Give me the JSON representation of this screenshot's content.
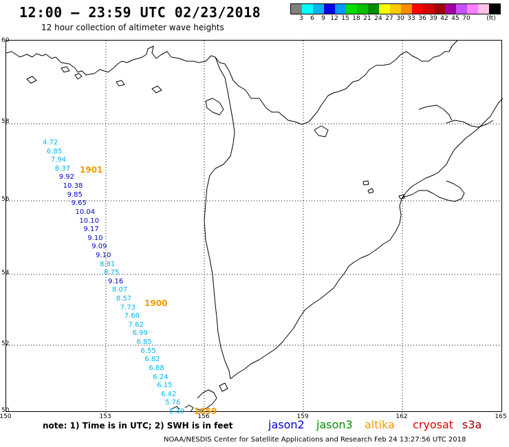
{
  "header": {
    "title": "12:00 — 23:59 UTC 02/23/2018",
    "subtitle": "12 hour collection of altimeter wave heights"
  },
  "legend": {
    "colors": [
      "#808080",
      "#00ffff",
      "#00b4f0",
      "#0000e6",
      "#0098ff",
      "#00e000",
      "#00c000",
      "#008c00",
      "#ffff00",
      "#ffc800",
      "#ff8c00",
      "#ff0000",
      "#d40000",
      "#a00000",
      "#a000a0",
      "#c850ff",
      "#ff80ff",
      "#ffc0e8",
      "#000000"
    ],
    "labels": [
      "3",
      "6",
      "9",
      "12",
      "15",
      "18",
      "21",
      "24",
      "27",
      "30",
      "33",
      "36",
      "39",
      "42",
      "45",
      "70",
      "(ft)"
    ]
  },
  "axes": {
    "lat_labels": [
      "60",
      "58",
      "56",
      "54",
      "52",
      "50"
    ],
    "lon_labels": [
      "150",
      "153",
      "156",
      "159",
      "162",
      "165"
    ]
  },
  "observations": [
    {
      "v": "4.72",
      "c": "#00b4f0"
    },
    {
      "v": "6.85",
      "c": "#00b4f0"
    },
    {
      "v": "7.94",
      "c": "#00b4f0"
    },
    {
      "v": "8.37",
      "c": "#00b4f0"
    },
    {
      "v": "9.92",
      "c": "#0000cc"
    },
    {
      "v": "10.38",
      "c": "#0000cc"
    },
    {
      "v": "9.85",
      "c": "#0000cc"
    },
    {
      "v": "9.65",
      "c": "#0000cc"
    },
    {
      "v": "10.04",
      "c": "#0000cc"
    },
    {
      "v": "10.10",
      "c": "#0000cc"
    },
    {
      "v": "9.17",
      "c": "#0000cc"
    },
    {
      "v": "9.10",
      "c": "#0000cc"
    },
    {
      "v": "9.09",
      "c": "#0000cc"
    },
    {
      "v": "9.10",
      "c": "#0000cc"
    },
    {
      "v": "8.81",
      "c": "#00b4f0"
    },
    {
      "v": "8.75",
      "c": "#00b4f0"
    },
    {
      "v": "9.16",
      "c": "#0000cc"
    },
    {
      "v": "8.07",
      "c": "#00b4f0"
    },
    {
      "v": "8.57",
      "c": "#00b4f0"
    },
    {
      "v": "7.73",
      "c": "#00b4f0"
    },
    {
      "v": "7.60",
      "c": "#00b4f0"
    },
    {
      "v": "7.62",
      "c": "#00b4f0"
    },
    {
      "v": "6.99",
      "c": "#00b4f0"
    },
    {
      "v": "6.85",
      "c": "#00b4f0"
    },
    {
      "v": "6.55",
      "c": "#00b4f0"
    },
    {
      "v": "6.82",
      "c": "#00b4f0"
    },
    {
      "v": "6.88",
      "c": "#00b4f0"
    },
    {
      "v": "6.24",
      "c": "#00b4f0"
    },
    {
      "v": "6.15",
      "c": "#00b4f0"
    },
    {
      "v": "6.42",
      "c": "#00b4f0"
    },
    {
      "v": "5.76",
      "c": "#00b4f0"
    },
    {
      "v": "5.39",
      "c": "#00b4f0"
    }
  ],
  "time_labels": [
    "1901",
    "1900",
    "1859"
  ],
  "footer": {
    "note": "note: 1) Time is in UTC; 2) SWH is in feet",
    "satellites": [
      {
        "name": "jason2",
        "color": "#0000cc"
      },
      {
        "name": "jason3",
        "color": "#008c00"
      },
      {
        "name": "altika",
        "color": "#f29a00"
      },
      {
        "name": "cryosat",
        "color": "#e00000"
      },
      {
        "name": "s3a",
        "color": "#a00000"
      }
    ],
    "credit": "NOAA/NESDIS Center for Satellite Applications and Research    Feb 24 13:27:56 UTC 2018"
  }
}
